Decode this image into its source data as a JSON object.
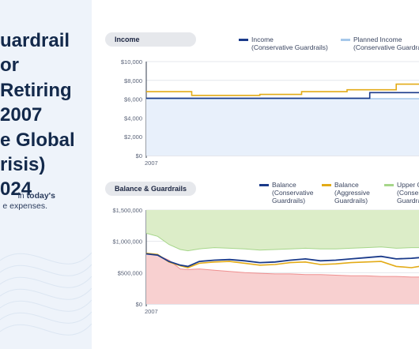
{
  "headline_lines": [
    "uardrail",
    "or",
    "Retiring",
    "2007",
    "e Global",
    "risis)",
    "024"
  ],
  "note": {
    "pre": "in ",
    "bold": "today's",
    "line2": "e expenses."
  },
  "colors": {
    "conservative": "#1a3a8a",
    "aggressive": "#e3ab17",
    "planned": "#a6c8ea",
    "upper_band": "#dcedc8",
    "lower_band": "#f8d0d0",
    "upper_line": "#a6d68a",
    "lower_line": "#ef8f8f"
  },
  "charts": [
    {
      "id": "income",
      "pill_label": "Income",
      "legend": [
        {
          "label_lines": [
            "Income",
            "(Conservative Guardrails)"
          ],
          "color": "#1a3a8a"
        },
        {
          "label_lines": [
            "Planned Income",
            "(Conservative Guardra"
          ],
          "color": "#a6c8ea"
        }
      ],
      "chart_data": {
        "type": "line",
        "y_ticks": [
          "$0",
          "$2,000",
          "$4,000",
          "$6,000",
          "$8,000",
          "$10,000"
        ],
        "x_tick_label": "2007",
        "ylim": [
          0,
          10000
        ],
        "xlim": [
          2007,
          2014.2
        ],
        "series": [
          {
            "name": "Income (Conservative Guardrails)",
            "points": [
              [
                2007,
                6100
              ],
              [
                2012.9,
                6100
              ],
              [
                2012.9,
                6700
              ],
              [
                2014.2,
                6700
              ]
            ]
          },
          {
            "name": "Planned Income (Conservative Guardrails)",
            "points": [
              [
                2007,
                6050
              ],
              [
                2014.2,
                6050
              ]
            ]
          },
          {
            "name": "",
            "points": [
              [
                2007,
                6800
              ],
              [
                2008.2,
                6800
              ],
              [
                2008.2,
                6400
              ],
              [
                2010.0,
                6400
              ],
              [
                2010.0,
                6500
              ],
              [
                2011.1,
                6500
              ],
              [
                2011.1,
                6800
              ],
              [
                2012.3,
                6800
              ],
              [
                2012.3,
                7000
              ],
              [
                2013.6,
                7000
              ],
              [
                2013.6,
                7600
              ],
              [
                2014.2,
                7600
              ]
            ]
          }
        ]
      }
    },
    {
      "id": "balance",
      "pill_label": "Balance & Guardrails",
      "legend": [
        {
          "label_lines": [
            "Balance",
            "(Conservative",
            "Guardrails)"
          ],
          "color": "#1a3a8a"
        },
        {
          "label_lines": [
            "Balance",
            "(Aggressive",
            "Guardrails)"
          ],
          "color": "#e3ab17"
        },
        {
          "label_lines": [
            "Upper G",
            "(Conser",
            "Guardra"
          ],
          "color": "#a6d68a"
        }
      ],
      "chart_data": {
        "type": "area",
        "y_ticks": [
          "$0",
          "$500,000",
          "$1,000,000",
          "$1,500,000"
        ],
        "x_tick_label": "2007",
        "ylim": [
          0,
          1500000
        ],
        "xlim": [
          2007,
          2014.2
        ],
        "series": [
          {
            "name": "Balance (Conservative Guardrails)",
            "points": [
              [
                2007,
                800000
              ],
              [
                2007.3,
                780000
              ],
              [
                2007.6,
                680000
              ],
              [
                2007.9,
                620000
              ],
              [
                2008.1,
                600000
              ],
              [
                2008.4,
                680000
              ],
              [
                2008.8,
                700000
              ],
              [
                2009.2,
                710000
              ],
              [
                2009.6,
                690000
              ],
              [
                2010.0,
                660000
              ],
              [
                2010.4,
                670000
              ],
              [
                2010.8,
                700000
              ],
              [
                2011.2,
                720000
              ],
              [
                2011.6,
                690000
              ],
              [
                2012.0,
                700000
              ],
              [
                2012.4,
                720000
              ],
              [
                2012.8,
                740000
              ],
              [
                2013.2,
                760000
              ],
              [
                2013.6,
                720000
              ],
              [
                2014.0,
                730000
              ],
              [
                2014.2,
                740000
              ]
            ]
          },
          {
            "name": "Balance (Aggressive Guardrails)",
            "points": [
              [
                2007,
                810000
              ],
              [
                2007.3,
                790000
              ],
              [
                2007.6,
                670000
              ],
              [
                2007.9,
                610000
              ],
              [
                2008.1,
                580000
              ],
              [
                2008.4,
                650000
              ],
              [
                2008.8,
                670000
              ],
              [
                2009.2,
                680000
              ],
              [
                2009.6,
                650000
              ],
              [
                2010.0,
                620000
              ],
              [
                2010.4,
                630000
              ],
              [
                2010.8,
                660000
              ],
              [
                2011.2,
                670000
              ],
              [
                2011.6,
                630000
              ],
              [
                2012.0,
                640000
              ],
              [
                2012.4,
                660000
              ],
              [
                2012.8,
                670000
              ],
              [
                2013.2,
                680000
              ],
              [
                2013.6,
                600000
              ],
              [
                2014.0,
                580000
              ],
              [
                2014.2,
                600000
              ]
            ]
          },
          {
            "name": "Upper Guardrail (Conservative Guardrails)",
            "points": [
              [
                2007,
                1130000
              ],
              [
                2007.3,
                1080000
              ],
              [
                2007.6,
                950000
              ],
              [
                2007.9,
                870000
              ],
              [
                2008.1,
                850000
              ],
              [
                2008.4,
                880000
              ],
              [
                2008.8,
                900000
              ],
              [
                2009.2,
                890000
              ],
              [
                2009.6,
                880000
              ],
              [
                2010.0,
                860000
              ],
              [
                2010.4,
                870000
              ],
              [
                2010.8,
                880000
              ],
              [
                2011.2,
                890000
              ],
              [
                2011.6,
                880000
              ],
              [
                2012.0,
                880000
              ],
              [
                2012.4,
                890000
              ],
              [
                2012.8,
                900000
              ],
              [
                2013.2,
                910000
              ],
              [
                2013.6,
                890000
              ],
              [
                2014.0,
                900000
              ],
              [
                2014.2,
                900000
              ]
            ]
          },
          {
            "name": "",
            "points": [
              [
                2007,
                800000
              ],
              [
                2007.3,
                780000
              ],
              [
                2007.6,
                700000
              ],
              [
                2007.9,
                560000
              ],
              [
                2008.1,
                550000
              ],
              [
                2008.4,
                560000
              ],
              [
                2008.8,
                540000
              ],
              [
                2009.2,
                520000
              ],
              [
                2009.6,
                500000
              ],
              [
                2010.0,
                490000
              ],
              [
                2010.4,
                480000
              ],
              [
                2010.8,
                480000
              ],
              [
                2011.2,
                470000
              ],
              [
                2011.6,
                470000
              ],
              [
                2012.0,
                460000
              ],
              [
                2012.4,
                450000
              ],
              [
                2012.8,
                450000
              ],
              [
                2013.2,
                440000
              ],
              [
                2013.6,
                440000
              ],
              [
                2014.0,
                430000
              ],
              [
                2014.2,
                430000
              ]
            ]
          }
        ]
      }
    }
  ]
}
